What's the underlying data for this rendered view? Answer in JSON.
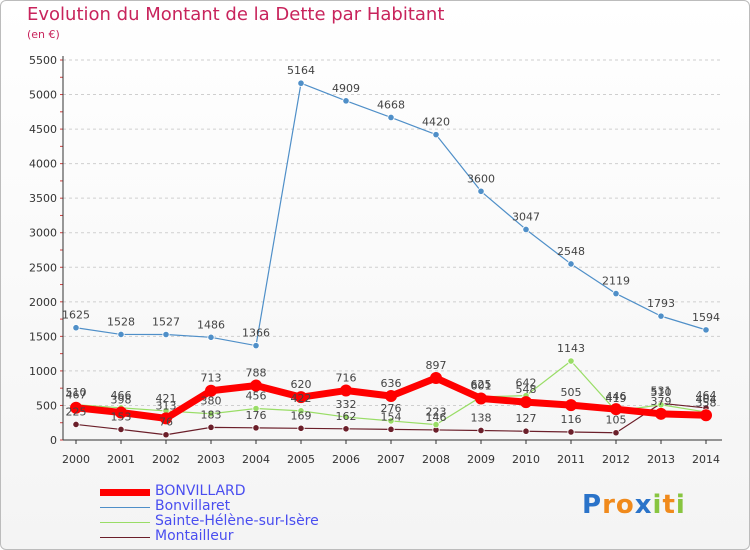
{
  "title": "Evolution du Montant de la Dette par Habitant",
  "subtitle": "(en €)",
  "logo": [
    "P",
    "r",
    "o",
    "x",
    "i",
    "t",
    "i"
  ],
  "colors": {
    "title": "#c8245c",
    "grid": "#cfcfcf",
    "axis": "#333333",
    "legend_text": "#4a4ef0"
  },
  "chart_data": {
    "type": "line",
    "x": [
      "2000",
      "2001",
      "2002",
      "2003",
      "2004",
      "2005",
      "2006",
      "2007",
      "2008",
      "2009",
      "2010",
      "2011",
      "2012",
      "2013",
      "2014"
    ],
    "ylim": [
      0,
      5500
    ],
    "yticks": [
      "0",
      "500",
      "1000",
      "1500",
      "2000",
      "2500",
      "3000",
      "3500",
      "4000",
      "4500",
      "5000",
      "5500"
    ],
    "grid": "horizontal dashed",
    "legend": "bottom-left",
    "series": [
      {
        "name": "BONVILLARD",
        "color": "#ff0000",
        "values": [
          467,
          398,
          313,
          713,
          788,
          620,
          716,
          636,
          897,
          601,
          548,
          505,
          446,
          379,
          358
        ],
        "labels": [
          "467",
          "398",
          "313",
          "713",
          "788",
          "620",
          "716",
          "636",
          "897",
          "601",
          "548",
          "505",
          "446",
          "379",
          "358"
        ]
      },
      {
        "name": "Bonvillaret",
        "color": "#4f8fc8",
        "values": [
          1625,
          1528,
          1527,
          1486,
          1366,
          5164,
          4909,
          4668,
          4420,
          3600,
          3047,
          2548,
          2119,
          1793,
          1594
        ],
        "labels": [
          "1625",
          "1528",
          "1527",
          "1486",
          "1366",
          "5164",
          "4909",
          "4668",
          "4420",
          "3600",
          "3047",
          "2548",
          "2119",
          "1793",
          "1594"
        ]
      },
      {
        "name": "Sainte-Hélène-sur-Isère",
        "color": "#99dd66",
        "values": [
          510,
          466,
          421,
          380,
          456,
          422,
          332,
          276,
          223,
          625,
          642,
          1143,
          419,
          510,
          404
        ],
        "labels": [
          "510",
          "466",
          "421",
          "380",
          "456",
          "422",
          "332",
          "276",
          "223",
          "625",
          "642",
          "1143",
          "419",
          "510",
          "404"
        ]
      },
      {
        "name": "Montailleur",
        "color": "#6b1f2a",
        "values": [
          225,
          153,
          76,
          183,
          176,
          169,
          162,
          154,
          146,
          138,
          127,
          116,
          105,
          531,
          464
        ],
        "labels": [
          "225",
          "153",
          "76",
          "183",
          "176",
          "169",
          "162",
          "154",
          "146",
          "138",
          "127",
          "116",
          "105",
          "531",
          "464"
        ]
      }
    ]
  }
}
